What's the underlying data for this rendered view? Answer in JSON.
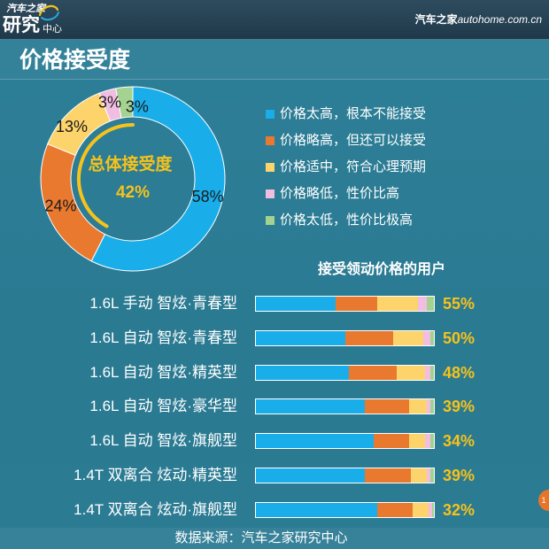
{
  "header": {
    "logo_top": "汽车之家",
    "logo_main": "研究",
    "logo_sub": "中心",
    "brand_cn": "汽车之家",
    "brand_url": "autohome.com.cn"
  },
  "title": "价格接受度",
  "colors": {
    "background": "#2b7b93",
    "header": "#24404f",
    "highlight": "#f6c21c",
    "label_dark": "#1b1b1b",
    "series": [
      "#19aee9",
      "#e9792f",
      "#fdd36b",
      "#f1bde1",
      "#a4d290"
    ]
  },
  "chart_data": [
    {
      "type": "pie",
      "variant": "donut",
      "categories": [
        "价格太高，根本不能接受",
        "价格略高，但还可以接受",
        "价格适中，符合心理预期",
        "价格略低，性价比高",
        "价格太低，性价比极高"
      ],
      "values": [
        58,
        24,
        13,
        3,
        3
      ],
      "unit": "%",
      "center_label": "总体接受度",
      "center_value": 42,
      "legend_position": "right"
    },
    {
      "type": "bar",
      "orientation": "horizontal",
      "stacked": true,
      "title": "接受领动价格的用户",
      "categories": [
        "1.6L 手动 智炫·青春型",
        "1.6L 自动 智炫·青春型",
        "1.6L 自动 智炫·精英型",
        "1.6L 自动 智炫·豪华型",
        "1.6L 自动 智炫·旗舰型",
        "1.4T 双离合 炫动·精英型",
        "1.4T 双离合 炫动·旗舰型"
      ],
      "series": [
        {
          "name": "价格太高，根本不能接受",
          "values": [
            45,
            50,
            52,
            61,
            66,
            61,
            68
          ]
        },
        {
          "name": "价格略高，但还可以接受",
          "values": [
            23,
            27,
            27,
            25,
            20,
            26,
            20
          ]
        },
        {
          "name": "价格适中，符合心理预期",
          "values": [
            23,
            17,
            16,
            10,
            9,
            9,
            9
          ]
        },
        {
          "name": "价格略低，性价比高",
          "values": [
            5,
            4,
            3,
            2,
            3,
            2,
            2
          ]
        },
        {
          "name": "价格太低，性价比极高",
          "values": [
            4,
            2,
            2,
            2,
            2,
            2,
            1
          ]
        }
      ],
      "xlim": [
        0,
        100
      ],
      "data_labels": [
        55,
        50,
        48,
        39,
        34,
        39,
        32
      ],
      "unit": "%"
    }
  ],
  "source": "数据来源：汽车之家研究中心",
  "page_tab": "1"
}
